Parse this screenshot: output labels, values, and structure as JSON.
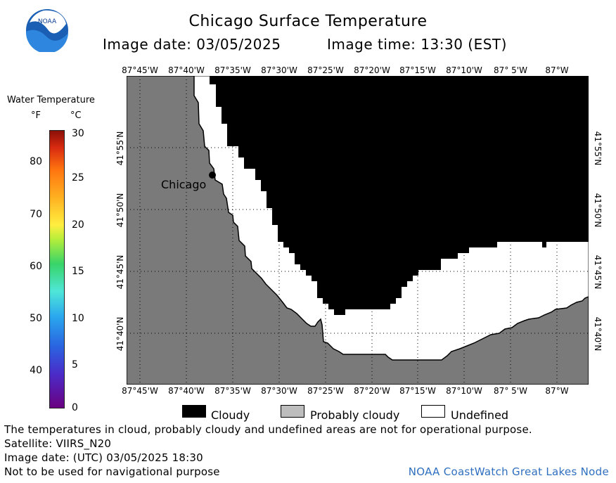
{
  "header": {
    "title": "Chicago Surface Temperature",
    "image_date_label": "Image date: 03/05/2025",
    "image_time_label": "Image time: 13:30 (EST)"
  },
  "logo": {
    "text": "NOAA"
  },
  "scale": {
    "title": "Water Temperature",
    "unit_f": "°F",
    "unit_c": "°C",
    "f_ticks": [
      "80",
      "70",
      "60",
      "50",
      "40"
    ],
    "c_ticks": [
      "30",
      "25",
      "20",
      "15",
      "10",
      "5",
      "0"
    ]
  },
  "map": {
    "lon_labels": [
      "87°45'W",
      "87°40'W",
      "87°35'W",
      "87°30'W",
      "87°25'W",
      "87°20'W",
      "87°15'W",
      "87°10'W",
      "87° 5'W",
      "87°W"
    ],
    "lat_labels": [
      "41°55'N",
      "41°50'N",
      "41°45'N",
      "41°40'N"
    ],
    "city": "Chicago",
    "colors": {
      "land": "#7a7a7a",
      "cloudy": "#000000",
      "probably_cloudy": "#bdbdbd",
      "undefined": "#ffffff"
    }
  },
  "legend": {
    "cloudy": "Cloudy",
    "probably_cloudy": "Probably cloudy",
    "undefined": "Undefined"
  },
  "footer": {
    "disclaimer": "The temperatures in cloud, probably cloudy and undefined areas are not for operational purpose.",
    "satellite": "Satellite: VIIRS_N20",
    "utc_date": "Image date: (UTC) 03/05/2025  18:30",
    "navigation": "Not to be used for navigational purpose",
    "credit": "NOAA CoastWatch Great Lakes Node"
  }
}
